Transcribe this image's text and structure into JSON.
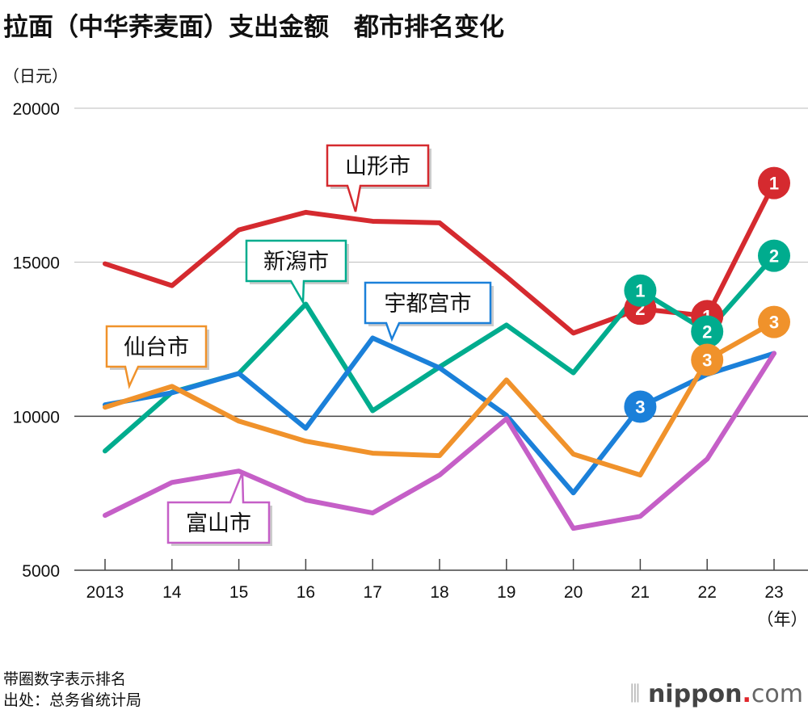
{
  "title": "拉面（中华荞麦面）支出金额　都市排名变化",
  "unit": "（日元）",
  "notes": [
    "带圈数字表示排名",
    "出处：总务省统计局"
  ],
  "logo": {
    "name": "nippon",
    "dot": ".",
    "tld": "com"
  },
  "chart_data": {
    "type": "line",
    "title": "拉面（中华荞麦面）支出金额　都市排名变化",
    "ylabel": "（日元）",
    "xlabel": "（年）",
    "ylim": [
      5000,
      20000
    ],
    "yticks": [
      5000,
      10000,
      15000,
      20000
    ],
    "grid": true,
    "x": [
      "2013",
      "14",
      "15",
      "16",
      "17",
      "18",
      "19",
      "20",
      "21",
      "22",
      "23"
    ],
    "series": [
      {
        "name": "山形市",
        "color": "#d52a2f",
        "values": [
          14950,
          14240,
          16050,
          16620,
          16330,
          16280,
          14530,
          12700,
          13490,
          13250,
          17570
        ],
        "ranks": {
          "21": 2,
          "22": 1,
          "23": 1
        }
      },
      {
        "name": "新潟市",
        "color": "#00ac8e",
        "values": [
          8870,
          10780,
          11390,
          13640,
          10180,
          11600,
          12960,
          11410,
          14080,
          12750,
          15210
        ],
        "ranks": {
          "21": 1,
          "22": 2,
          "23": 2
        }
      },
      {
        "name": "宇都宫市",
        "color": "#1b80d9",
        "values": [
          10370,
          10760,
          11390,
          9610,
          12540,
          11570,
          10030,
          7510,
          10310,
          11360,
          12040
        ],
        "ranks": {
          "21": 3
        }
      },
      {
        "name": "仙台市",
        "color": "#f0922b",
        "values": [
          10290,
          10970,
          9840,
          9190,
          8800,
          8720,
          11180,
          8770,
          8090,
          11830,
          13060
        ],
        "ranks": {
          "22": 3,
          "23": 3
        }
      },
      {
        "name": "富山市",
        "color": "#c55fc7",
        "values": [
          6780,
          7850,
          8220,
          7280,
          6860,
          8090,
          9920,
          6360,
          6750,
          8610,
          12040
        ],
        "ranks": {}
      }
    ]
  }
}
